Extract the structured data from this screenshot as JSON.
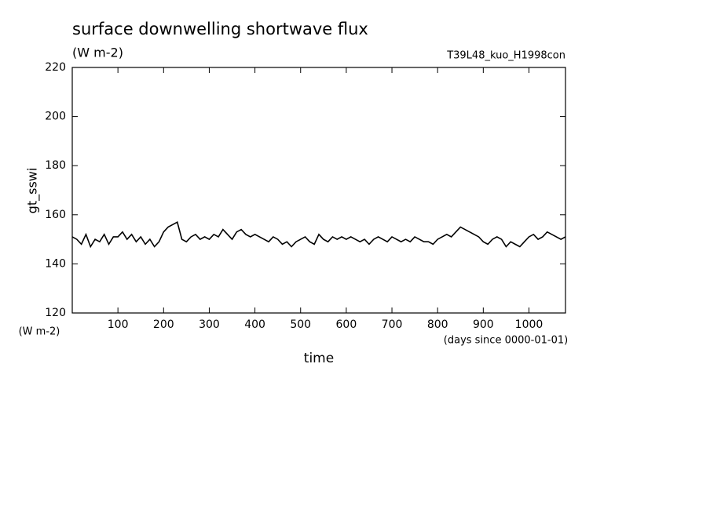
{
  "chart_data": {
    "type": "line",
    "title": "surface downwelling shortwave flux",
    "subtitle": "(W m-2)",
    "annotation": "T39L48_kuo_H1998con",
    "y_label": "gt_sswi",
    "y_units": "(W m-2)",
    "x_label": "time",
    "x_units": "(days since 0000-01-01)",
    "xlim": [
      0,
      1080
    ],
    "xticks": [
      100,
      200,
      300,
      400,
      500,
      600,
      700,
      800,
      900,
      1000
    ],
    "ylim": [
      120,
      220
    ],
    "yticks": [
      120,
      140,
      160,
      180,
      200,
      220
    ],
    "series": [
      {
        "color": "#000000",
        "x": [
          0,
          10,
          20,
          30,
          40,
          50,
          60,
          70,
          80,
          90,
          100,
          110,
          120,
          130,
          140,
          150,
          160,
          170,
          180,
          190,
          200,
          210,
          220,
          230,
          240,
          250,
          260,
          270,
          280,
          290,
          300,
          310,
          320,
          330,
          340,
          350,
          360,
          370,
          380,
          390,
          400,
          410,
          420,
          430,
          440,
          450,
          460,
          470,
          480,
          490,
          500,
          510,
          520,
          530,
          540,
          550,
          560,
          570,
          580,
          590,
          600,
          610,
          620,
          630,
          640,
          650,
          660,
          670,
          680,
          690,
          700,
          710,
          720,
          730,
          740,
          750,
          760,
          770,
          780,
          790,
          800,
          810,
          820,
          830,
          840,
          850,
          860,
          870,
          880,
          890,
          900,
          910,
          920,
          930,
          940,
          950,
          960,
          970,
          980,
          990,
          1000,
          1010,
          1020,
          1030,
          1040,
          1050,
          1060,
          1070,
          1080
        ],
        "values": [
          151,
          150,
          148,
          152,
          147,
          150,
          149,
          152,
          148,
          151,
          151,
          153,
          150,
          152,
          149,
          151,
          148,
          150,
          147,
          149,
          153,
          155,
          156,
          157,
          150,
          149,
          151,
          152,
          150,
          151,
          150,
          152,
          151,
          154,
          152,
          150,
          153,
          154,
          152,
          151,
          152,
          151,
          150,
          149,
          151,
          150,
          148,
          149,
          147,
          149,
          150,
          151,
          149,
          148,
          152,
          150,
          149,
          151,
          150,
          151,
          150,
          151,
          150,
          149,
          150,
          148,
          150,
          151,
          150,
          149,
          151,
          150,
          149,
          150,
          149,
          151,
          150,
          149,
          149,
          148,
          150,
          151,
          152,
          151,
          153,
          155,
          154,
          153,
          152,
          151,
          149,
          148,
          150,
          151,
          150,
          147,
          149,
          148,
          147,
          149,
          151,
          152,
          150,
          151,
          153,
          152,
          151,
          150,
          151
        ]
      }
    ]
  }
}
